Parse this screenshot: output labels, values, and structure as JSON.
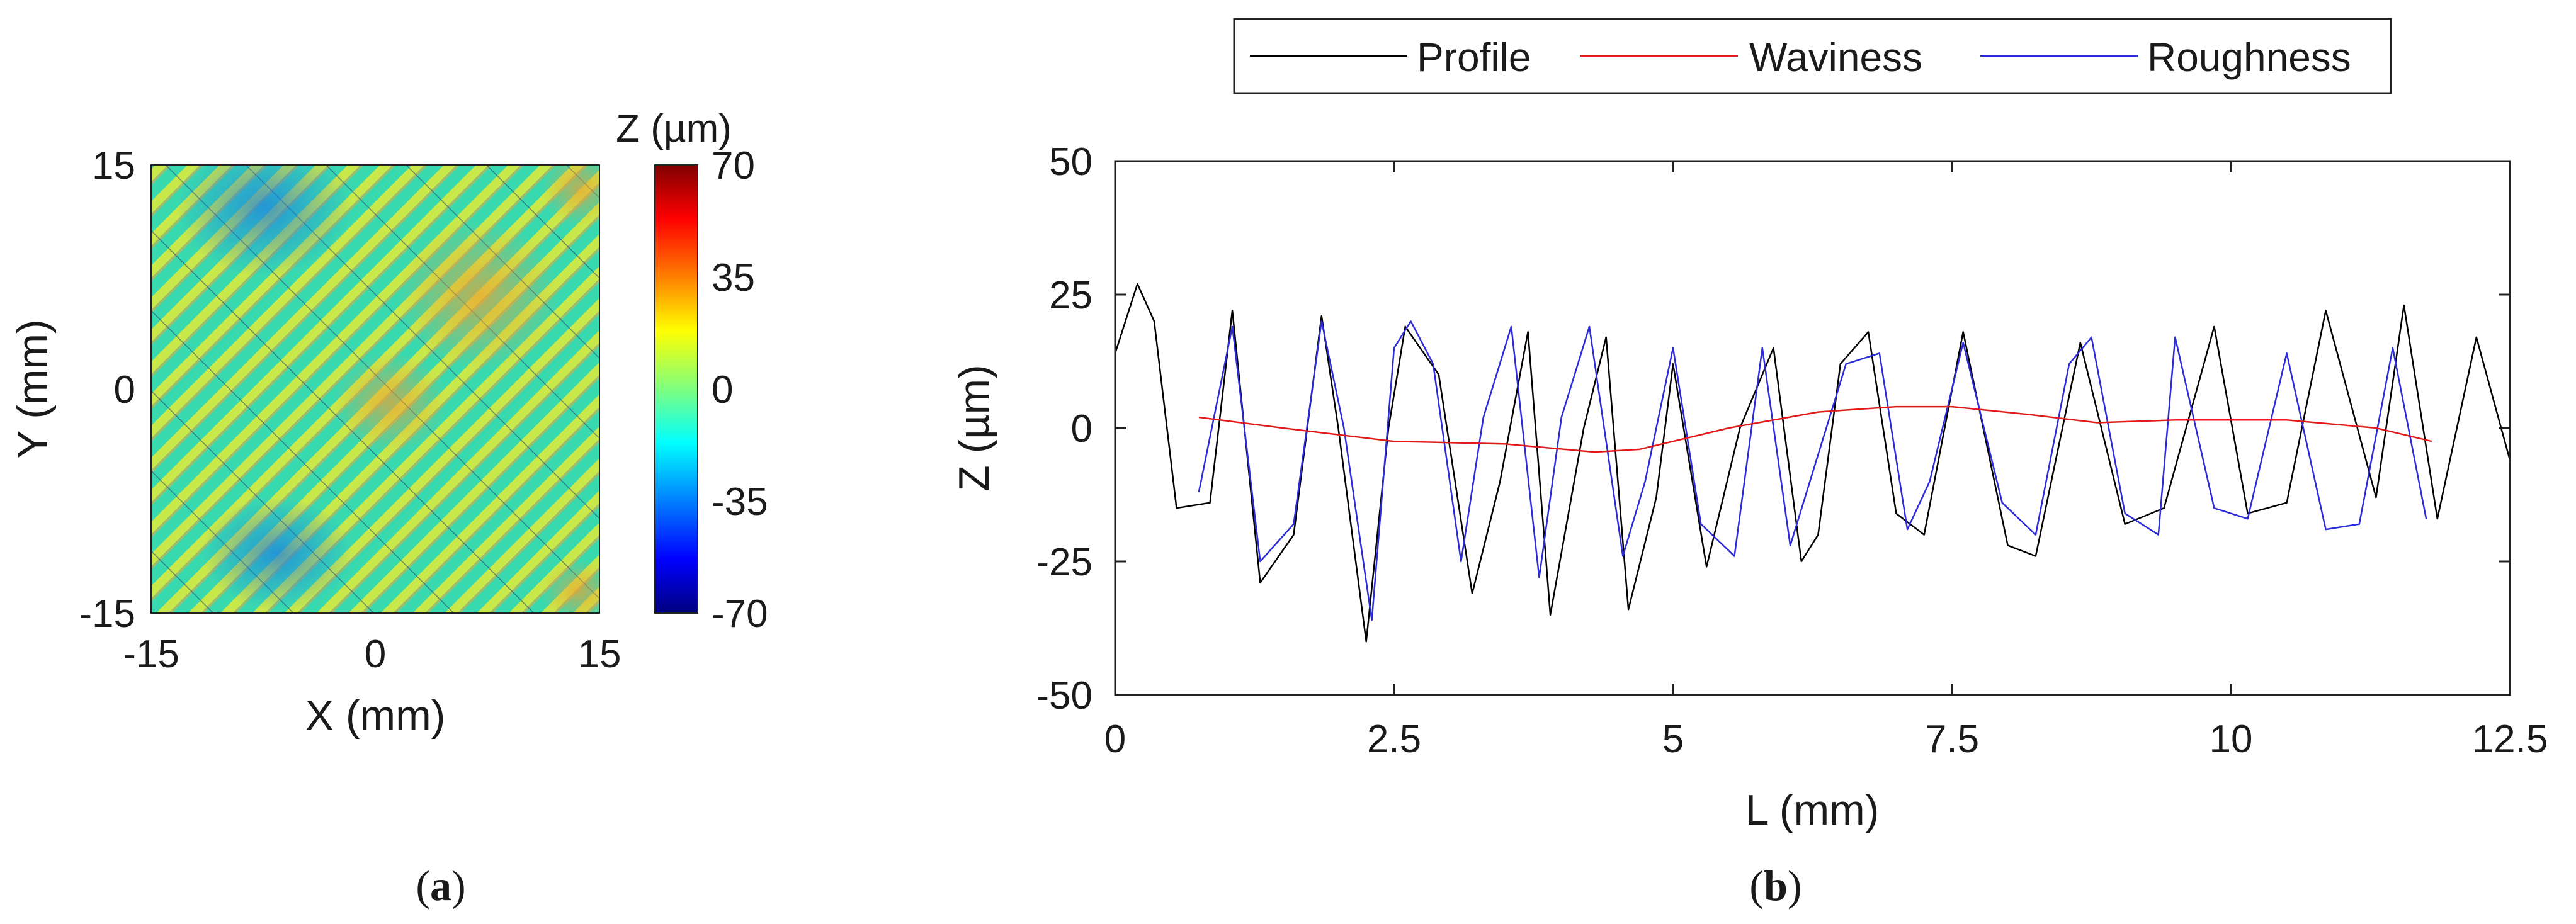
{
  "chart_data": [
    {
      "panel": "a",
      "type": "heatmap",
      "caption_open": "(",
      "caption_label": "a",
      "caption_close": ")",
      "xlabel": "X (mm)",
      "ylabel": "Y (mm)",
      "xlim": [
        -15,
        15
      ],
      "ylim": [
        -15,
        15
      ],
      "x_ticks": [
        "-15",
        "0",
        "15"
      ],
      "y_ticks": [
        "15",
        "0",
        "-15"
      ],
      "colorbar_title": "Z (µm)",
      "colorbar_ticks": [
        "70",
        "35",
        "0",
        "-35",
        "-70"
      ],
      "clim": [
        -70,
        70
      ],
      "colormap": [
        "#00007f",
        "#0000ff",
        "#007fff",
        "#00ffff",
        "#7fff7f",
        "#ffff00",
        "#ff7f00",
        "#ff0000",
        "#7f0000"
      ],
      "description_values": {
        "stripe_orientation": "diagonal",
        "base_range_um": [
          -20,
          20
        ]
      }
    },
    {
      "panel": "b",
      "type": "line",
      "caption_open": "(",
      "caption_label": "b",
      "caption_close": ")",
      "xlabel": "L (mm)",
      "ylabel": "Z (µm)",
      "xlim": [
        0,
        12.5
      ],
      "ylim": [
        -50,
        50
      ],
      "x_ticks": [
        "0",
        "2.5",
        "5",
        "7.5",
        "10",
        "12.5"
      ],
      "y_ticks": [
        "50",
        "25",
        "0",
        "-25",
        "-50"
      ],
      "legend": [
        "Profile",
        "Waviness",
        "Roughness"
      ],
      "series": [
        {
          "name": "Profile",
          "color": "#000000",
          "x": [
            0,
            0.2,
            0.35,
            0.55,
            0.85,
            1.05,
            1.3,
            1.6,
            1.85,
            2.0,
            2.25,
            2.45,
            2.6,
            2.9,
            3.2,
            3.45,
            3.7,
            3.9,
            4.2,
            4.4,
            4.6,
            4.85,
            5.0,
            5.3,
            5.6,
            5.9,
            6.15,
            6.3,
            6.5,
            6.75,
            7.0,
            7.25,
            7.6,
            8.0,
            8.25,
            8.65,
            9.05,
            9.4,
            9.85,
            10.15,
            10.5,
            10.85,
            11.3,
            11.55,
            11.85,
            12.2,
            12.5
          ],
          "values": [
            14,
            27,
            20,
            -15,
            -14,
            22,
            -29,
            -20,
            21,
            0,
            -40,
            0,
            19,
            10,
            -31,
            -10,
            18,
            -35,
            0,
            17,
            -34,
            -13,
            12,
            -26,
            0,
            15,
            -25,
            -20,
            12,
            18,
            -16,
            -20,
            18,
            -22,
            -24,
            16,
            -18,
            -15,
            19,
            -16,
            -14,
            22,
            -13,
            23,
            -17,
            17,
            -6
          ]
        },
        {
          "name": "Waviness",
          "color": "#e31a1c",
          "x": [
            0.75,
            1.5,
            2.5,
            3.5,
            4.3,
            4.7,
            5.5,
            6.3,
            7.0,
            7.5,
            8.2,
            8.8,
            9.5,
            10.5,
            11.3,
            11.8
          ],
          "values": [
            2,
            0,
            -2.5,
            -3,
            -4.5,
            -4,
            0,
            3,
            4,
            4,
            2.5,
            1,
            1.5,
            1.5,
            0,
            -2.5
          ]
        },
        {
          "name": "Roughness",
          "color": "#2b2bd9",
          "x": [
            0.75,
            1.05,
            1.3,
            1.6,
            1.85,
            2.05,
            2.3,
            2.5,
            2.65,
            2.85,
            3.1,
            3.3,
            3.55,
            3.8,
            4.0,
            4.25,
            4.55,
            4.75,
            5.0,
            5.25,
            5.55,
            5.8,
            6.05,
            6.3,
            6.55,
            6.85,
            7.1,
            7.3,
            7.6,
            7.95,
            8.25,
            8.55,
            8.75,
            9.05,
            9.35,
            9.5,
            9.85,
            10.15,
            10.5,
            10.85,
            11.15,
            11.45,
            11.75
          ],
          "values": [
            -12,
            19,
            -25,
            -18,
            20,
            0,
            -36,
            15,
            20,
            12,
            -25,
            2,
            19,
            -28,
            2,
            19,
            -24,
            -10,
            15,
            -18,
            -24,
            15,
            -22,
            -5,
            12,
            14,
            -19,
            -10,
            16,
            -14,
            -20,
            12,
            17,
            -16,
            -20,
            17,
            -15,
            -17,
            14,
            -19,
            -18,
            15,
            -17
          ]
        }
      ]
    }
  ]
}
